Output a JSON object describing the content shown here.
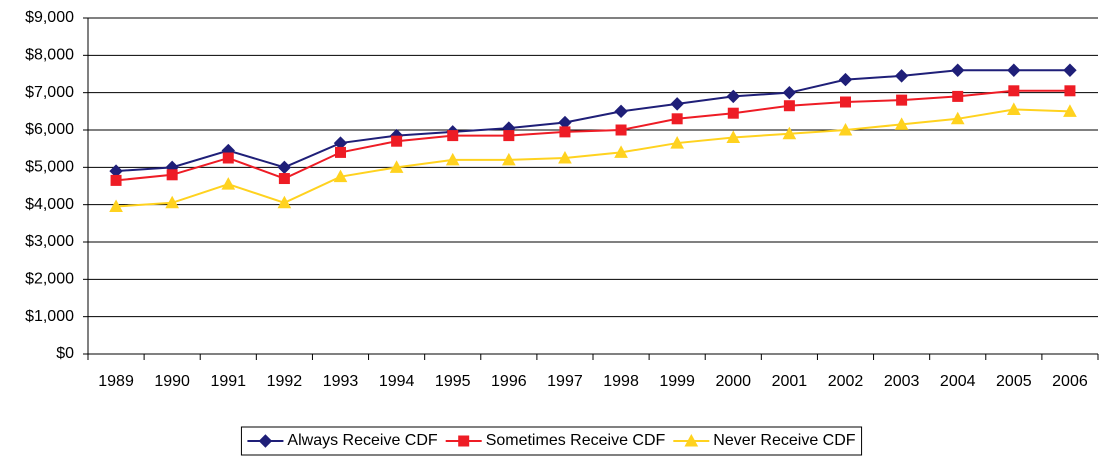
{
  "chart_data": {
    "type": "line",
    "categories": [
      "1989",
      "1990",
      "1991",
      "1992",
      "1993",
      "1994",
      "1995",
      "1996",
      "1997",
      "1998",
      "1999",
      "2000",
      "2001",
      "2002",
      "2003",
      "2004",
      "2005",
      "2006"
    ],
    "series": [
      {
        "name": "Always Receive CDF",
        "color": "#1f1f78",
        "marker": "diamond",
        "values": [
          4900,
          5000,
          5450,
          5000,
          5650,
          5850,
          5950,
          6050,
          6200,
          6500,
          6700,
          6900,
          7000,
          7350,
          7450,
          7600,
          7600,
          7600
        ]
      },
      {
        "name": "Sometimes Receive CDF",
        "color": "#ee1c25",
        "marker": "square",
        "values": [
          4650,
          4800,
          5250,
          4700,
          5400,
          5700,
          5850,
          5850,
          5950,
          6000,
          6300,
          6450,
          6650,
          6750,
          6800,
          6900,
          7050,
          7050
        ]
      },
      {
        "name": "Never Receive CDF",
        "color": "#ffd21f",
        "marker": "triangle",
        "values": [
          3950,
          4050,
          4550,
          4050,
          4750,
          5000,
          5200,
          5200,
          5250,
          5400,
          5650,
          5800,
          5900,
          6000,
          6150,
          6300,
          6550,
          6500
        ]
      }
    ],
    "ylim": [
      0,
      9000
    ],
    "yticks": [
      {
        "value": 0,
        "label": "$0"
      },
      {
        "value": 1000,
        "label": "$1,000"
      },
      {
        "value": 2000,
        "label": "$2,000"
      },
      {
        "value": 3000,
        "label": "$3,000"
      },
      {
        "value": 4000,
        "label": "$4,000"
      },
      {
        "value": 5000,
        "label": "$5,000"
      },
      {
        "value": 6000,
        "label": "$6,000"
      },
      {
        "value": 7000,
        "label": "$7,000"
      },
      {
        "value": 8000,
        "label": "$8,000"
      },
      {
        "value": 9000,
        "label": "$9,000"
      }
    ],
    "grid": true,
    "legend": "bottom"
  }
}
